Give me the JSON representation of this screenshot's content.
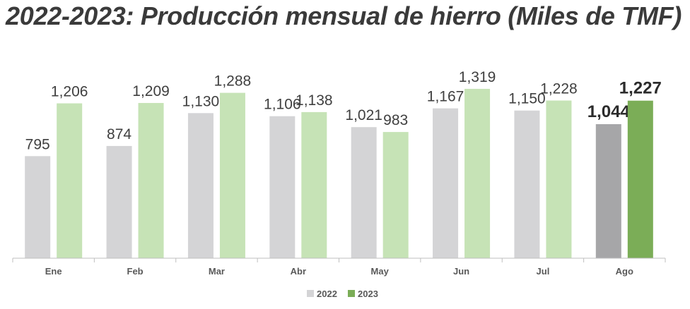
{
  "title": "2022-2023: Producción mensual de hierro (Miles de TMF)",
  "chart_data": {
    "type": "bar",
    "title": "2022-2023: Producción mensual de hierro (Miles de TMF)",
    "xlabel": "",
    "ylabel": "",
    "categories": [
      "Ene",
      "Feb",
      "Mar",
      "Abr",
      "May",
      "Jun",
      "Jul",
      "Ago"
    ],
    "series": [
      {
        "name": "2022",
        "values": [
          795,
          874,
          1130,
          1106,
          1021,
          1167,
          1150,
          1044
        ],
        "labels": [
          "795",
          "874",
          "1,130",
          "1,106",
          "1,021",
          "1,167",
          "1,150",
          "1,044"
        ],
        "color": "#d4d4d6",
        "highlight_color": "#a6a6a8"
      },
      {
        "name": "2023",
        "values": [
          1206,
          1209,
          1288,
          1138,
          983,
          1319,
          1228,
          1227
        ],
        "labels": [
          "1,206",
          "1,209",
          "1,288",
          "1,138",
          "983",
          "1,319",
          "1,228",
          "1,227"
        ],
        "color": "#c6e3b6",
        "highlight_color": "#7bad57"
      }
    ],
    "highlight_category": "Ago",
    "ylim": [
      0,
      1400
    ],
    "grid": false,
    "legend_position": "bottom-center",
    "axis_color": "#bfbfbf"
  }
}
